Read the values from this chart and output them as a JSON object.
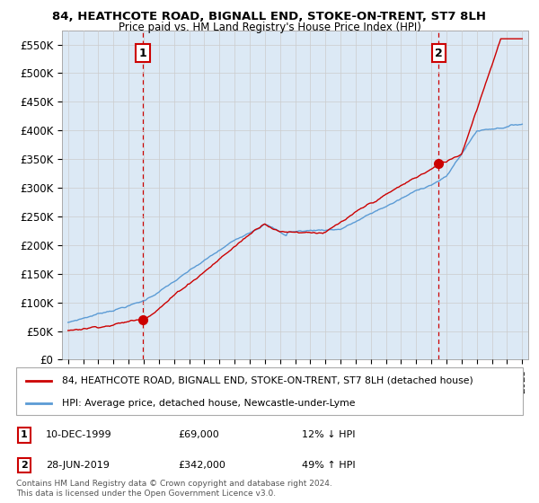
{
  "title": "84, HEATHCOTE ROAD, BIGNALL END, STOKE-ON-TRENT, ST7 8LH",
  "subtitle": "Price paid vs. HM Land Registry's House Price Index (HPI)",
  "ylim": [
    0,
    575000
  ],
  "yticks": [
    0,
    50000,
    100000,
    150000,
    200000,
    250000,
    300000,
    350000,
    400000,
    450000,
    500000,
    550000
  ],
  "ytick_labels": [
    "£0",
    "£50K",
    "£100K",
    "£150K",
    "£200K",
    "£250K",
    "£300K",
    "£350K",
    "£400K",
    "£450K",
    "£500K",
    "£550K"
  ],
  "xlim_start": 1994.6,
  "xlim_end": 2025.4,
  "sale1_x": 1999.94,
  "sale1_y": 69000,
  "sale1_label": "1",
  "sale1_date": "10-DEC-1999",
  "sale1_price": "£69,000",
  "sale1_hpi": "12% ↓ HPI",
  "sale2_x": 2019.49,
  "sale2_y": 342000,
  "sale2_label": "2",
  "sale2_date": "28-JUN-2019",
  "sale2_price": "£342,000",
  "sale2_hpi": "49% ↑ HPI",
  "red_color": "#cc0000",
  "blue_color": "#5b9bd5",
  "bg_fill": "#dce9f5",
  "legend1": "84, HEATHCOTE ROAD, BIGNALL END, STOKE-ON-TRENT, ST7 8LH (detached house)",
  "legend2": "HPI: Average price, detached house, Newcastle-under-Lyme",
  "footer1": "Contains HM Land Registry data © Crown copyright and database right 2024.",
  "footer2": "This data is licensed under the Open Government Licence v3.0.",
  "background_color": "#ffffff",
  "grid_color": "#cccccc"
}
